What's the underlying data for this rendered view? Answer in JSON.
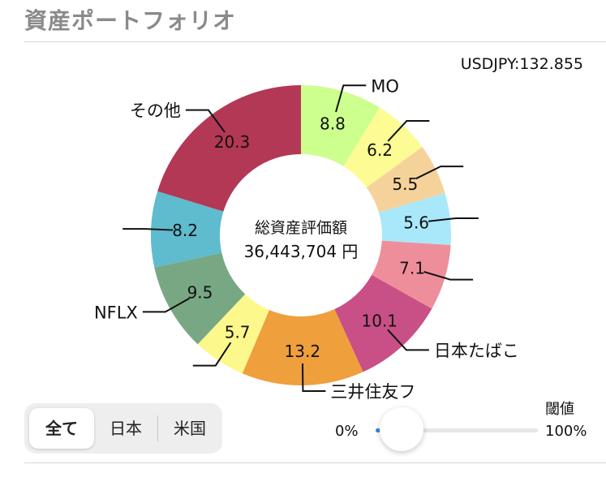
{
  "title": "資産ポートフォリオ",
  "rate": "USDJPY:132.855",
  "center": {
    "title": "総資産評価額",
    "value": "36,443,704 円"
  },
  "filter": {
    "options": [
      "全て",
      "日本",
      "米国"
    ],
    "selected": "全て"
  },
  "threshold": {
    "label": "閾値",
    "min_label": "0%",
    "max_label": "100%",
    "value": 0
  },
  "chart_data": {
    "type": "pie",
    "slices": [
      {
        "name": "MO",
        "value": 8.8,
        "color": "#ccff8e"
      },
      {
        "name": "",
        "value": 6.2,
        "color": "#fdfb94"
      },
      {
        "name": "",
        "value": 5.5,
        "color": "#f6d29b"
      },
      {
        "name": "",
        "value": 5.6,
        "color": "#a8e8fa"
      },
      {
        "name": "",
        "value": 7.1,
        "color": "#ef8e9b"
      },
      {
        "name": "日本たばこ",
        "value": 10.1,
        "color": "#c85086"
      },
      {
        "name": "三井住友フ",
        "value": 13.2,
        "color": "#ef9f3c"
      },
      {
        "name": "",
        "value": 5.7,
        "color": "#fdf88c"
      },
      {
        "name": "NFLX",
        "value": 9.5,
        "color": "#78a784"
      },
      {
        "name": "",
        "value": 8.2,
        "color": "#5fbbce"
      },
      {
        "name": "その他",
        "value": 20.3,
        "color": "#b33855"
      }
    ]
  }
}
